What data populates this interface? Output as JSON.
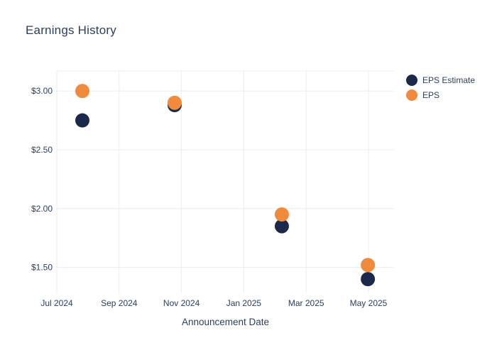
{
  "chart_data": {
    "type": "scatter",
    "title": "Earnings History",
    "xlabel": "Announcement Date",
    "ylabel": "",
    "grid": true,
    "legend_position": "right",
    "x_axis": {
      "tick_labels": [
        "Jul 2024",
        "Sep 2024",
        "Nov 2024",
        "Jan 2025",
        "Mar 2025",
        "May 2025"
      ],
      "tick_positions_months_from_jul2024": [
        0,
        2,
        4,
        6,
        8,
        10
      ],
      "range_months": [
        0,
        10.82
      ]
    },
    "y_axis": {
      "tick_labels": [
        "$3.00",
        "$2.50",
        "$2.00",
        "$1.50"
      ],
      "tick_values": [
        3.0,
        2.5,
        2.0,
        1.5
      ],
      "range": [
        1.28,
        3.17
      ],
      "tick_prefix": "$"
    },
    "series": [
      {
        "name": "EPS Estimate",
        "color": "#1b2a4a",
        "marker": "circle",
        "points": [
          {
            "x_months": 0.82,
            "approx_date": "Aug 2024",
            "value": 2.75
          },
          {
            "x_months": 3.78,
            "approx_date": "Oct 2024",
            "value": 2.88
          },
          {
            "x_months": 7.22,
            "approx_date": "Feb 2025",
            "value": 1.85
          },
          {
            "x_months": 9.98,
            "approx_date": "May 2025",
            "value": 1.4
          }
        ]
      },
      {
        "name": "EPS",
        "color": "#f28a3d",
        "marker": "circle",
        "points": [
          {
            "x_months": 0.82,
            "approx_date": "Aug 2024",
            "value": 3.0
          },
          {
            "x_months": 3.78,
            "approx_date": "Oct 2024",
            "value": 2.9
          },
          {
            "x_months": 7.22,
            "approx_date": "Feb 2025",
            "value": 1.95
          },
          {
            "x_months": 9.98,
            "approx_date": "May 2025",
            "value": 1.52
          }
        ]
      }
    ]
  },
  "colors": {
    "text": "#2a3f5f",
    "grid": "#e8ecf4",
    "background": "#ffffff",
    "eps_estimate": "#1b2a4a",
    "eps": "#f28a3d"
  }
}
